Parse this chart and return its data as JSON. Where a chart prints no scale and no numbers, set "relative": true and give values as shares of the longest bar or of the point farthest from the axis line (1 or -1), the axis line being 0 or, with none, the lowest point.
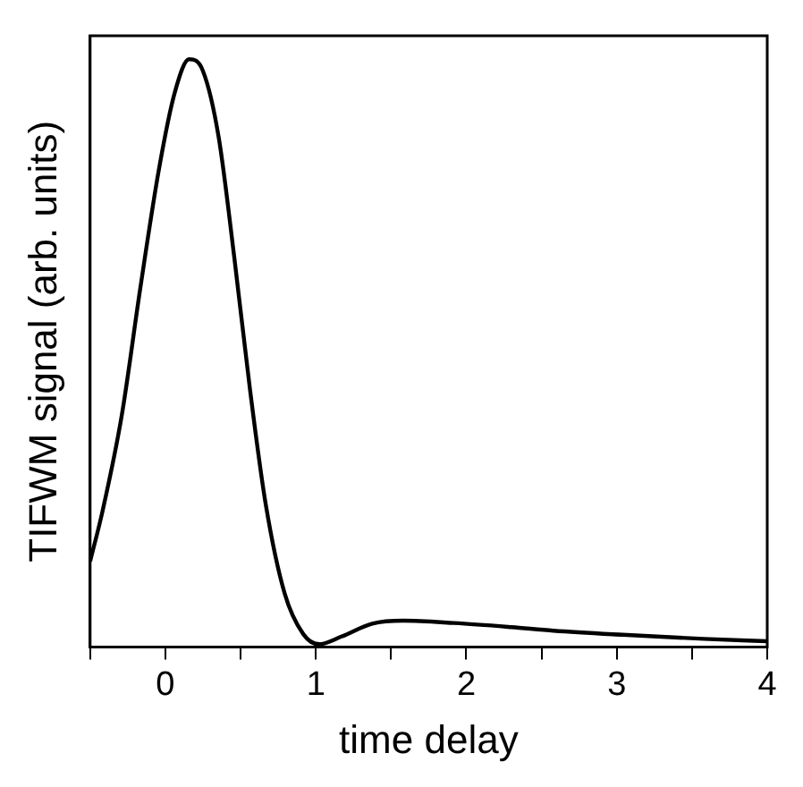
{
  "chart_data": {
    "type": "line",
    "xlabel": "time delay",
    "ylabel": "TIFWM signal (arb. units)",
    "relative": true,
    "xlim": [
      -0.5,
      4
    ],
    "xticks": [
      {
        "value": -0.5,
        "label": null
      },
      0,
      {
        "value": 0.5,
        "label": null
      },
      1,
      {
        "value": 1.5,
        "label": null
      },
      2,
      {
        "value": 2.5,
        "label": null
      },
      3,
      {
        "value": 3.5,
        "label": null
      },
      4
    ],
    "grid": false,
    "legend": false,
    "marker": "none",
    "line_style": "solid",
    "series": [
      {
        "color": "#000000",
        "x": [
          -0.5,
          -0.417,
          -0.29,
          -0.167,
          -0.042,
          0.063,
          0.158,
          0.25,
          0.354,
          0.458,
          0.563,
          0.667,
          0.792,
          0.917,
          1.02,
          1.17,
          1.375,
          1.58,
          1.92,
          2.3,
          2.58,
          3.04,
          3.58,
          4.0
        ],
        "values": [
          0.146,
          0.232,
          0.394,
          0.61,
          0.814,
          0.944,
          1,
          0.98,
          0.868,
          0.663,
          0.437,
          0.243,
          0.092,
          0.022,
          0.005,
          0.018,
          0.04,
          0.045,
          0.041,
          0.034,
          0.028,
          0.021,
          0.014,
          0.01
        ]
      }
    ]
  }
}
